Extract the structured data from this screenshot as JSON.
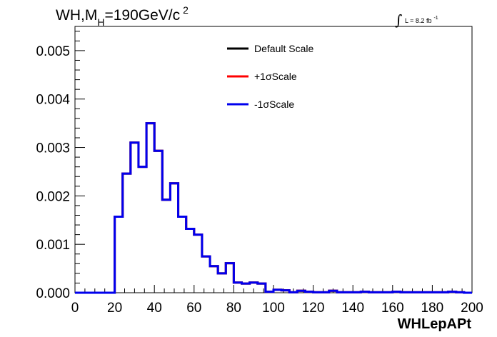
{
  "title": {
    "main": "WH,M",
    "subscript": "H",
    "rest": "=190GeV/c",
    "superscript": "2"
  },
  "lumi": {
    "integral_symbol": "∫",
    "text": "L = 8.2 fb",
    "superscript": "-1"
  },
  "chart_data": {
    "type": "line",
    "xlabel": "WHLepAPt",
    "ylabel": "",
    "xlim": [
      0,
      200
    ],
    "ylim": [
      0,
      0.0055
    ],
    "x_ticks": [
      "0",
      "20",
      "40",
      "60",
      "80",
      "100",
      "120",
      "140",
      "160",
      "180",
      "200"
    ],
    "y_ticks": [
      "0.000",
      "0.001",
      "0.002",
      "0.003",
      "0.004",
      "0.005"
    ],
    "bin_edges": [
      0,
      4,
      8,
      12,
      16,
      20,
      24,
      28,
      32,
      36,
      40,
      44,
      48,
      52,
      56,
      60,
      64,
      68,
      72,
      76,
      80,
      84,
      88,
      92,
      96,
      100,
      104,
      108,
      112,
      116,
      120,
      124,
      128,
      132,
      136,
      140,
      144,
      148,
      152,
      156,
      160,
      164,
      168,
      172,
      176,
      180,
      184,
      188,
      192,
      196,
      200
    ],
    "series": [
      {
        "name": "Default Scale",
        "color": "#000000",
        "values": [
          0,
          0,
          0,
          0,
          0,
          0.00157,
          0.00246,
          0.0031,
          0.0026,
          0.0035,
          0.00293,
          0.00192,
          0.00226,
          0.00157,
          0.00132,
          0.0012,
          0.00075,
          0.00055,
          0.0004,
          0.00061,
          0.00021,
          0.00019,
          0.00021,
          0.00019,
          2e-05,
          6e-05,
          5e-05,
          1e-05,
          4e-05,
          2e-05,
          1e-05,
          1e-05,
          4e-05,
          1e-05,
          1e-05,
          1e-05,
          2e-05,
          1e-05,
          1e-05,
          1e-05,
          2e-05,
          1e-05,
          1e-05,
          1e-05,
          1e-05,
          1e-05,
          1e-05,
          2e-05,
          1e-05,
          0
        ]
      },
      {
        "name": "+1σScale",
        "color": "#ff0000",
        "values": [
          0,
          0,
          0,
          0,
          0,
          0.00157,
          0.00246,
          0.0031,
          0.0026,
          0.0035,
          0.00293,
          0.00192,
          0.00226,
          0.00157,
          0.00132,
          0.0012,
          0.00075,
          0.00055,
          0.0004,
          0.00061,
          0.00021,
          0.00019,
          0.00021,
          0.00019,
          2e-05,
          6e-05,
          5e-05,
          1e-05,
          4e-05,
          2e-05,
          1e-05,
          1e-05,
          4e-05,
          1e-05,
          1e-05,
          1e-05,
          2e-05,
          1e-05,
          1e-05,
          1e-05,
          2e-05,
          1e-05,
          1e-05,
          1e-05,
          1e-05,
          1e-05,
          1e-05,
          2e-05,
          1e-05,
          0
        ]
      },
      {
        "name": "-1σScale",
        "color": "#0000ee",
        "values": [
          0,
          0,
          0,
          0,
          0,
          0.00157,
          0.00246,
          0.0031,
          0.0026,
          0.0035,
          0.00293,
          0.00192,
          0.00226,
          0.00157,
          0.00132,
          0.0012,
          0.00075,
          0.00055,
          0.0004,
          0.00061,
          0.00021,
          0.00019,
          0.00021,
          0.00019,
          2e-05,
          6e-05,
          5e-05,
          1e-05,
          4e-05,
          2e-05,
          1e-05,
          1e-05,
          4e-05,
          1e-05,
          1e-05,
          1e-05,
          2e-05,
          1e-05,
          1e-05,
          1e-05,
          2e-05,
          1e-05,
          1e-05,
          1e-05,
          1e-05,
          1e-05,
          1e-05,
          2e-05,
          1e-05,
          0
        ]
      }
    ],
    "legend_position": "top-center",
    "grid": false
  }
}
